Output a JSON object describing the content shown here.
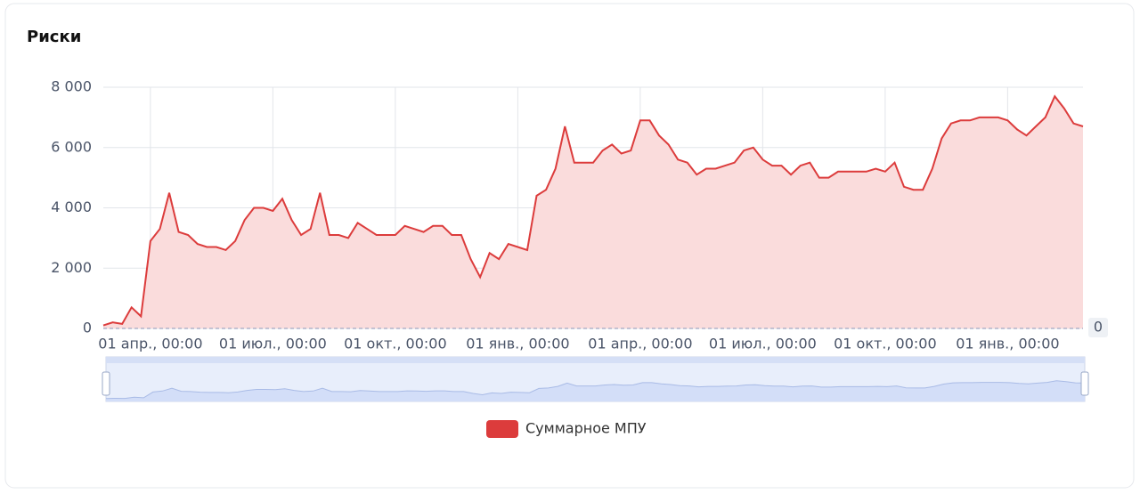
{
  "chart_data": {
    "type": "area",
    "title": "Риски",
    "categories": [
      null,
      null,
      null,
      null,
      null,
      "01 апр., 00:00",
      null,
      null,
      null,
      null,
      null,
      null,
      null,
      null,
      null,
      null,
      null,
      null,
      "01 июл., 00:00",
      null,
      null,
      null,
      null,
      null,
      null,
      null,
      null,
      null,
      null,
      null,
      null,
      "01 окт., 00:00",
      null,
      null,
      null,
      null,
      null,
      null,
      null,
      null,
      null,
      null,
      null,
      null,
      "01 янв., 00:00",
      null,
      null,
      null,
      null,
      null,
      null,
      null,
      null,
      null,
      null,
      null,
      null,
      "01 апр., 00:00",
      null,
      null,
      null,
      null,
      null,
      null,
      null,
      null,
      null,
      null,
      null,
      null,
      "01 июл., 00:00",
      null,
      null,
      null,
      null,
      null,
      null,
      null,
      null,
      null,
      null,
      null,
      null,
      "01 окт., 00:00",
      null,
      null,
      null,
      null,
      null,
      null,
      null,
      null,
      null,
      null,
      null,
      null,
      "01 янв., 00:00",
      null,
      null,
      null,
      null,
      null,
      null,
      null,
      null
    ],
    "series": [
      {
        "name": "Суммарное МПУ",
        "color": "#dc3c3c",
        "fill": "#fadcdc",
        "values": [
          100,
          200,
          150,
          700,
          400,
          2900,
          3300,
          4500,
          3200,
          3100,
          2800,
          2700,
          2700,
          2600,
          2900,
          3600,
          4000,
          4000,
          3900,
          4300,
          3600,
          3100,
          3300,
          4500,
          3100,
          3100,
          3000,
          3500,
          3300,
          3100,
          3100,
          3100,
          3400,
          3300,
          3200,
          3400,
          3400,
          3100,
          3100,
          2300,
          1700,
          2500,
          2300,
          2800,
          2700,
          2600,
          4400,
          4600,
          5300,
          6700,
          5500,
          5500,
          5500,
          5900,
          6100,
          5800,
          5900,
          6900,
          6900,
          6400,
          6100,
          5600,
          5500,
          5100,
          5300,
          5300,
          5400,
          5500,
          5900,
          6000,
          5600,
          5400,
          5400,
          5100,
          5400,
          5500,
          5000,
          5000,
          5200,
          5200,
          5200,
          5200,
          5300,
          5200,
          5500,
          4700,
          4600,
          4600,
          5300,
          6300,
          6800,
          6900,
          6900,
          7000,
          7000,
          7000,
          6900,
          6600,
          6400,
          6700,
          7000,
          7700,
          7300,
          6800,
          6700
        ]
      }
    ],
    "ylim": [
      0,
      8000
    ],
    "yticks": [
      0,
      {
        "value": 2000,
        "label": "2 000"
      },
      {
        "value": 4000,
        "label": "4 000"
      },
      {
        "value": 6000,
        "label": "6 000"
      },
      {
        "value": 8000,
        "label": "8 000"
      }
    ],
    "grid": true,
    "axis_pointer_label": "0"
  }
}
